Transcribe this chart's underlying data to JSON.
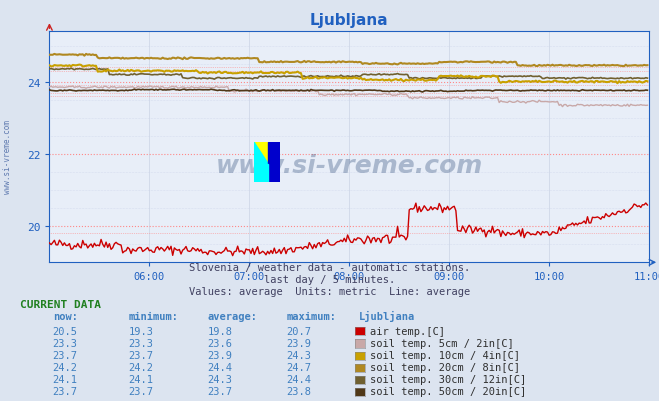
{
  "title": "Ljubljana",
  "subtitle1": "Slovenia / weather data - automatic stations.",
  "subtitle2": "last day / 5 minutes.",
  "subtitle3": "Values: average  Units: metric  Line: average",
  "bg_color": "#dce4f0",
  "plot_bg_color": "#e8eef8",
  "grid_color_major": "#ff8888",
  "grid_color_minor": "#c8d0e8",
  "grid_color_vert": "#d0d8e8",
  "xmin": 0,
  "xmax": 360,
  "xticks": [
    60,
    120,
    180,
    240,
    300,
    360
  ],
  "xtick_labels": [
    "06:00",
    "07:00",
    "08:00",
    "09:00",
    "10:00",
    "11:00"
  ],
  "ymin": 19.0,
  "ymax": 25.4,
  "yticks": [
    20,
    22,
    24
  ],
  "series": {
    "air_temp": {
      "color": "#cc0000",
      "label": "air temp.[C]",
      "now": 20.5,
      "min": 19.3,
      "avg": 19.8,
      "max": 20.7
    },
    "soil_5cm": {
      "color": "#c8a8a8",
      "label": "soil temp. 5cm / 2in[C]",
      "now": 23.3,
      "min": 23.3,
      "avg": 23.6,
      "max": 23.9
    },
    "soil_10cm": {
      "color": "#c8a000",
      "label": "soil temp. 10cm / 4in[C]",
      "now": 23.7,
      "min": 23.7,
      "avg": 23.9,
      "max": 24.3
    },
    "soil_20cm": {
      "color": "#b08820",
      "label": "soil temp. 20cm / 8in[C]",
      "now": 24.2,
      "min": 24.2,
      "avg": 24.4,
      "max": 24.7
    },
    "soil_30cm": {
      "color": "#706030",
      "label": "soil temp. 30cm / 12in[C]",
      "now": 24.1,
      "min": 24.1,
      "avg": 24.3,
      "max": 24.4
    },
    "soil_50cm": {
      "color": "#503818",
      "label": "soil temp. 50cm / 20in[C]",
      "now": 23.7,
      "min": 23.7,
      "avg": 23.7,
      "max": 23.8
    }
  },
  "current_data_header": "CURRENT DATA",
  "col_headers": [
    "now:",
    "minimum:",
    "average:",
    "maximum:",
    "Ljubljana"
  ],
  "watermark_text": "www.si-vreme.com",
  "watermark_color": "#1a3a6a",
  "watermark_alpha": 0.3,
  "left_label": "www.si-vreme.com",
  "left_label_color": "#4060a0",
  "title_color": "#2060c0",
  "axes_color": "#2060c0",
  "tick_color": "#2060c0",
  "table_num_color": "#4080c0",
  "header_color": "#208020",
  "subtitle_color": "#404060"
}
